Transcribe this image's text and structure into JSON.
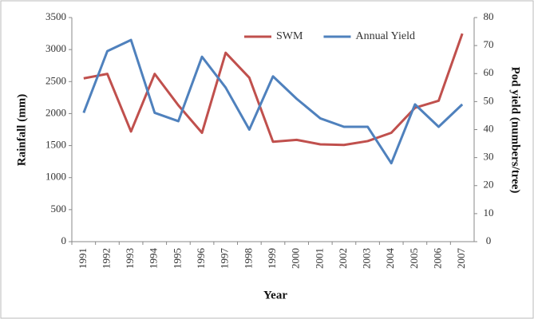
{
  "chart_data": {
    "type": "line",
    "x_label": "Year",
    "y_label": "Rainfall (mm)",
    "y2_label": "Pod yield (numbers/tree)",
    "categories": [
      "1991",
      "1992",
      "1993",
      "1994",
      "1995",
      "1996",
      "1997",
      "1998",
      "1999",
      "2000",
      "2001",
      "2002",
      "2003",
      "2004",
      "2005",
      "2006",
      "2007"
    ],
    "series": [
      {
        "name": "SWM",
        "color": "#c0504d",
        "values": [
          2550,
          2620,
          1720,
          2620,
          2130,
          1700,
          2950,
          2560,
          1560,
          1590,
          1520,
          1510,
          1570,
          1700,
          2090,
          2200,
          3250
        ]
      },
      {
        "name": "Annual Yield",
        "color": "#4f81bd",
        "axis": "y2",
        "values": [
          46,
          68,
          72,
          46,
          43,
          66,
          55,
          40,
          59,
          51,
          44,
          41,
          41,
          28,
          49,
          41,
          49
        ]
      }
    ],
    "ylim": [
      0,
      3500
    ],
    "yticks": [
      0,
      500,
      1000,
      1500,
      2000,
      2500,
      3000,
      3500
    ],
    "y2lim": [
      0,
      80
    ],
    "y2ticks": [
      0,
      10,
      20,
      30,
      40,
      50,
      60,
      70,
      80
    ],
    "grid": false,
    "legend": "top-right"
  }
}
